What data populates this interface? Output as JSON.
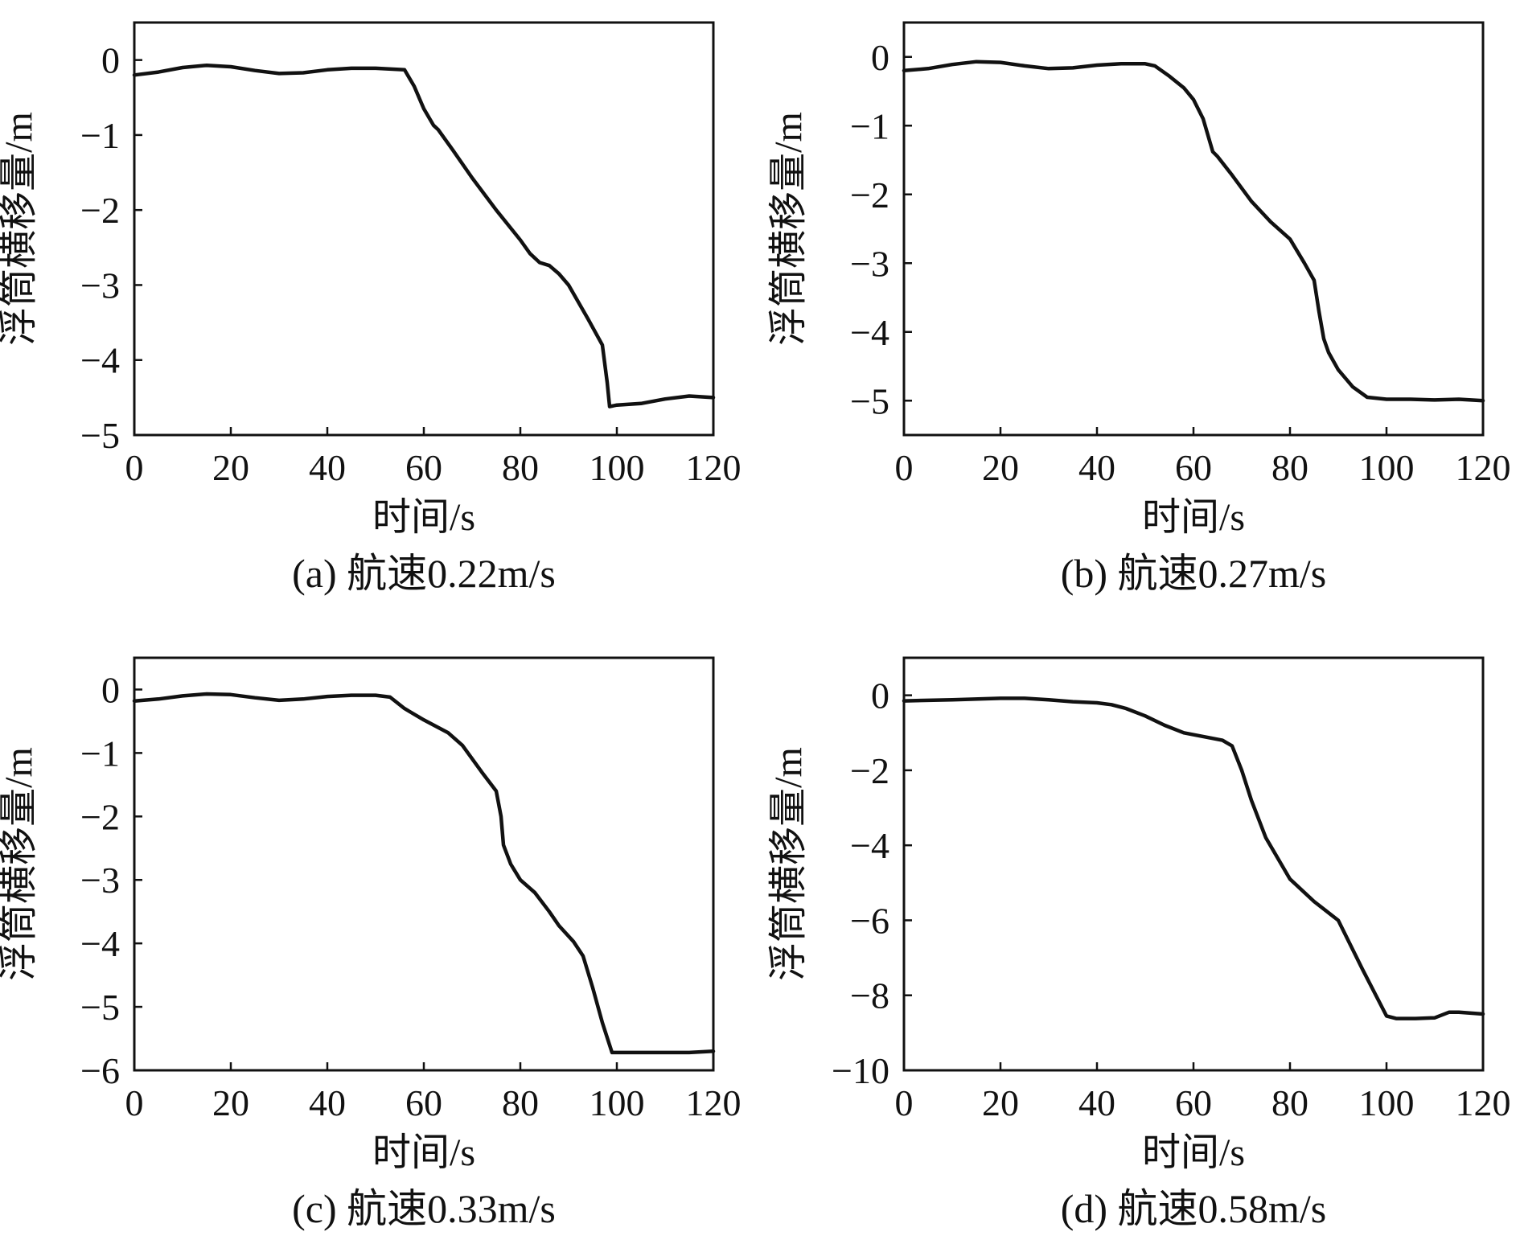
{
  "figure": {
    "colors": {
      "line": "#111111",
      "background": "#ffffff"
    }
  },
  "chart_data": [
    {
      "id": "a",
      "type": "line",
      "caption": "(a) 航速0.22m/s",
      "xlabel": "时间/s",
      "ylabel": "浮筒横移量/m",
      "xlim": [
        0,
        120
      ],
      "ylim": [
        -5,
        0.5
      ],
      "xticks": [
        0,
        20,
        40,
        60,
        80,
        100,
        120
      ],
      "xtick_labels": [
        "0",
        "20",
        "40",
        "60",
        "80",
        "100",
        "120"
      ],
      "yticks": [
        0,
        -1,
        -2,
        -3,
        -4,
        -5
      ],
      "ytick_labels": [
        "0",
        "−1",
        "−2",
        "−3",
        "−4",
        "−5"
      ],
      "grid": false,
      "series": [
        {
          "name": "浮筒横移量",
          "x": [
            0,
            5,
            10,
            15,
            20,
            25,
            30,
            35,
            40,
            45,
            50,
            56,
            58,
            60,
            62,
            63,
            66,
            70,
            75,
            80,
            82,
            84,
            86,
            88,
            90,
            94,
            97,
            98,
            98.5,
            100,
            105,
            110,
            115,
            120
          ],
          "y": [
            -0.2,
            -0.16,
            -0.1,
            -0.07,
            -0.09,
            -0.14,
            -0.18,
            -0.17,
            -0.13,
            -0.11,
            -0.11,
            -0.13,
            -0.35,
            -0.65,
            -0.87,
            -0.93,
            -1.2,
            -1.57,
            -2.0,
            -2.4,
            -2.58,
            -2.7,
            -2.74,
            -2.85,
            -3.0,
            -3.45,
            -3.8,
            -4.3,
            -4.62,
            -4.6,
            -4.58,
            -4.52,
            -4.48,
            -4.5
          ]
        }
      ]
    },
    {
      "id": "b",
      "type": "line",
      "caption": "(b) 航速0.27m/s",
      "xlabel": "时间/s",
      "ylabel": "浮筒横移量/m",
      "xlim": [
        0,
        120
      ],
      "ylim": [
        -5.5,
        0.5
      ],
      "xticks": [
        0,
        20,
        40,
        60,
        80,
        100,
        120
      ],
      "xtick_labels": [
        "0",
        "20",
        "40",
        "60",
        "80",
        "100",
        "120"
      ],
      "yticks": [
        0,
        -1,
        -2,
        -3,
        -4,
        -5
      ],
      "ytick_labels": [
        "0",
        "−1",
        "−2",
        "−3",
        "−4",
        "−5"
      ],
      "grid": false,
      "series": [
        {
          "name": "浮筒横移量",
          "x": [
            0,
            5,
            10,
            15,
            20,
            25,
            30,
            35,
            40,
            45,
            50,
            52,
            55,
            58,
            60,
            62,
            64,
            65,
            68,
            72,
            76,
            80,
            83,
            85,
            86,
            87,
            88,
            90,
            93,
            96,
            100,
            105,
            110,
            115,
            120
          ],
          "y": [
            -0.2,
            -0.17,
            -0.11,
            -0.07,
            -0.08,
            -0.13,
            -0.17,
            -0.16,
            -0.12,
            -0.1,
            -0.1,
            -0.13,
            -0.28,
            -0.45,
            -0.62,
            -0.9,
            -1.38,
            -1.45,
            -1.72,
            -2.1,
            -2.4,
            -2.65,
            -3.0,
            -3.25,
            -3.7,
            -4.1,
            -4.3,
            -4.55,
            -4.8,
            -4.95,
            -4.98,
            -4.98,
            -4.99,
            -4.98,
            -5.0
          ]
        }
      ]
    },
    {
      "id": "c",
      "type": "line",
      "caption": "(c) 航速0.33m/s",
      "xlabel": "时间/s",
      "ylabel": "浮筒横移量/m",
      "xlim": [
        0,
        120
      ],
      "ylim": [
        -6,
        0.5
      ],
      "xticks": [
        0,
        20,
        40,
        60,
        80,
        100,
        120
      ],
      "xtick_labels": [
        "0",
        "20",
        "40",
        "60",
        "80",
        "100",
        "120"
      ],
      "yticks": [
        0,
        -1,
        -2,
        -3,
        -4,
        -5,
        -6
      ],
      "ytick_labels": [
        "0",
        "−1",
        "−2",
        "−3",
        "−4",
        "−5",
        "−6"
      ],
      "grid": false,
      "series": [
        {
          "name": "浮筒横移量",
          "x": [
            0,
            5,
            10,
            15,
            20,
            25,
            30,
            35,
            40,
            45,
            50,
            53,
            56,
            60,
            65,
            68,
            72,
            75,
            76,
            76.5,
            78,
            80,
            83,
            86,
            88,
            91,
            93,
            95,
            97,
            99,
            105,
            110,
            115,
            120
          ],
          "y": [
            -0.18,
            -0.15,
            -0.1,
            -0.07,
            -0.08,
            -0.13,
            -0.17,
            -0.15,
            -0.11,
            -0.09,
            -0.09,
            -0.12,
            -0.3,
            -0.48,
            -0.68,
            -0.88,
            -1.3,
            -1.6,
            -2.0,
            -2.45,
            -2.75,
            -3.0,
            -3.2,
            -3.5,
            -3.72,
            -3.97,
            -4.2,
            -4.7,
            -5.25,
            -5.72,
            -5.72,
            -5.72,
            -5.72,
            -5.7
          ]
        }
      ]
    },
    {
      "id": "d",
      "type": "line",
      "caption": "(d) 航速0.58m/s",
      "xlabel": "时间/s",
      "ylabel": "浮筒横移量/m",
      "xlim": [
        0,
        120
      ],
      "ylim": [
        -10,
        1
      ],
      "xticks": [
        0,
        20,
        40,
        60,
        80,
        100,
        120
      ],
      "xtick_labels": [
        "0",
        "20",
        "40",
        "60",
        "80",
        "100",
        "120"
      ],
      "yticks": [
        0,
        -2,
        -4,
        -6,
        -8,
        -10
      ],
      "ytick_labels": [
        "0",
        "−2",
        "−4",
        "−6",
        "−8",
        "−10"
      ],
      "grid": false,
      "series": [
        {
          "name": "浮筒横移量",
          "x": [
            0,
            10,
            20,
            25,
            30,
            35,
            40,
            43,
            46,
            50,
            54,
            58,
            62,
            66,
            68,
            70,
            72,
            75,
            80,
            85,
            90,
            95,
            100,
            102,
            106,
            110,
            113,
            115,
            120
          ],
          "y": [
            -0.15,
            -0.12,
            -0.08,
            -0.08,
            -0.12,
            -0.17,
            -0.2,
            -0.25,
            -0.35,
            -0.55,
            -0.8,
            -1.0,
            -1.1,
            -1.2,
            -1.35,
            -2.0,
            -2.8,
            -3.8,
            -4.9,
            -5.5,
            -6.0,
            -7.3,
            -8.55,
            -8.62,
            -8.62,
            -8.6,
            -8.45,
            -8.45,
            -8.5
          ]
        }
      ]
    }
  ]
}
